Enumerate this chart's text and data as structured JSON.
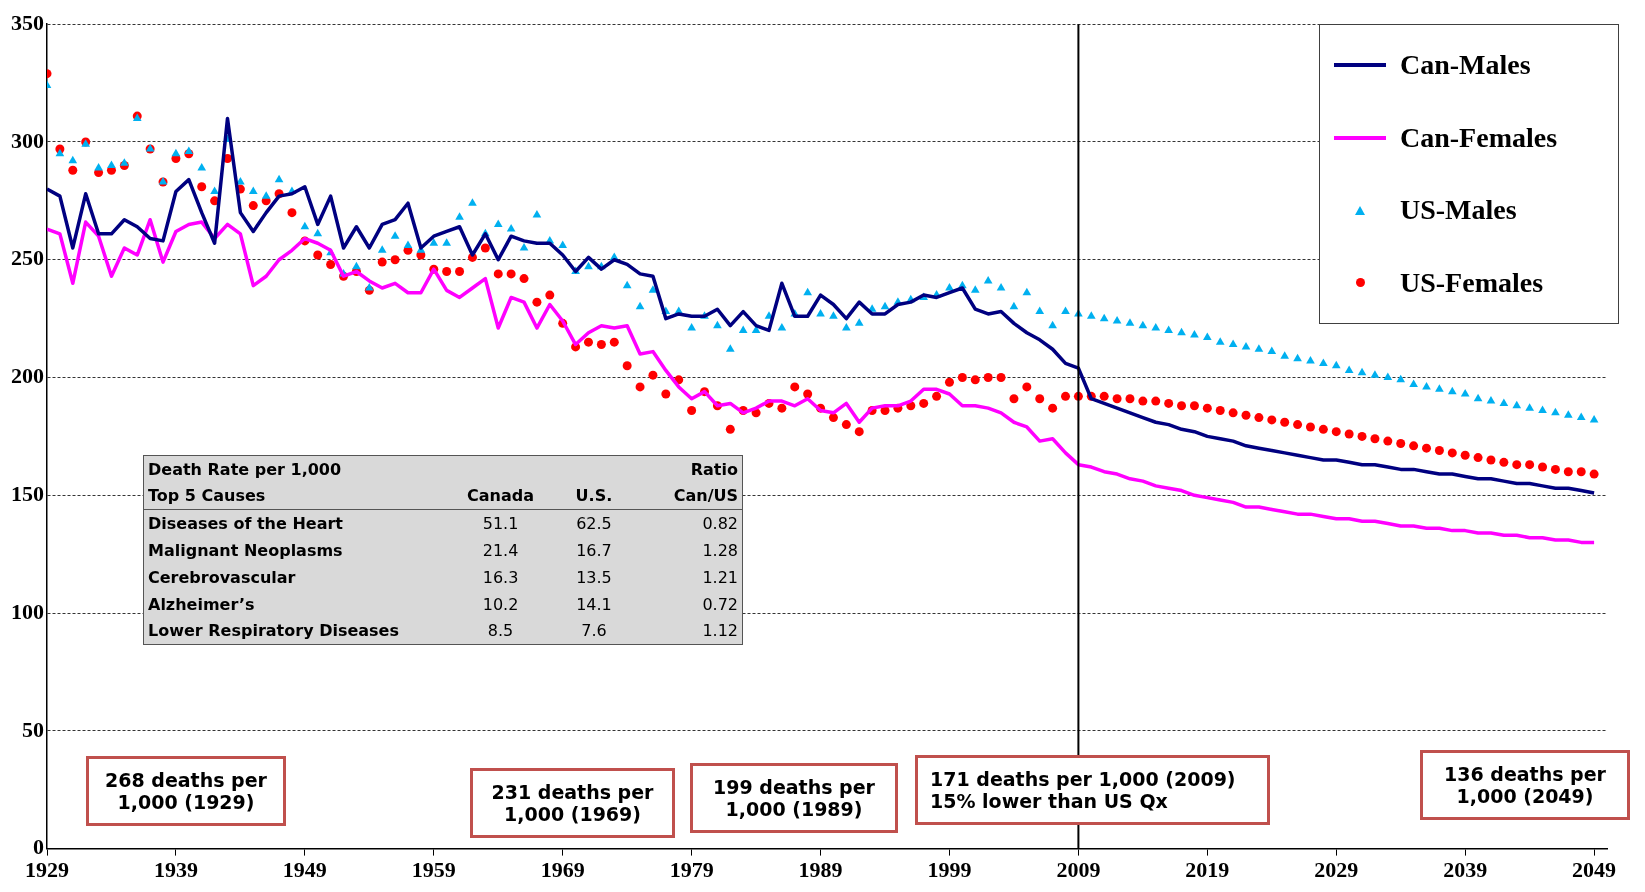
{
  "chart_data": {
    "type": "line",
    "x": [
      1929,
      1930,
      1931,
      1932,
      1933,
      1934,
      1935,
      1936,
      1937,
      1938,
      1939,
      1940,
      1941,
      1942,
      1943,
      1944,
      1945,
      1946,
      1947,
      1948,
      1949,
      1950,
      1951,
      1952,
      1953,
      1954,
      1955,
      1956,
      1957,
      1958,
      1959,
      1960,
      1961,
      1962,
      1963,
      1964,
      1965,
      1966,
      1967,
      1968,
      1969,
      1970,
      1971,
      1972,
      1973,
      1974,
      1975,
      1976,
      1977,
      1978,
      1979,
      1980,
      1981,
      1982,
      1983,
      1984,
      1985,
      1986,
      1987,
      1988,
      1989,
      1990,
      1991,
      1992,
      1993,
      1994,
      1995,
      1996,
      1997,
      1998,
      1999,
      2000,
      2001,
      2002,
      2003,
      2004,
      2005,
      2006,
      2007,
      2008,
      2009,
      2010,
      2011,
      2012,
      2013,
      2014,
      2015,
      2016,
      2017,
      2018,
      2019,
      2020,
      2021,
      2022,
      2023,
      2024,
      2025,
      2026,
      2027,
      2028,
      2029,
      2030,
      2031,
      2032,
      2033,
      2034,
      2035,
      2036,
      2037,
      2038,
      2039,
      2040,
      2041,
      2042,
      2043,
      2044,
      2045,
      2046,
      2047,
      2048,
      2049
    ],
    "series": [
      {
        "name": "Can-Males",
        "type": "line",
        "marker": "none",
        "color": "#000080",
        "values": [
          280,
          277,
          255,
          278,
          261,
          261,
          267,
          264,
          259,
          258,
          279,
          284,
          270,
          257,
          310,
          270,
          262,
          270,
          277,
          278,
          281,
          265,
          277,
          255,
          264,
          255,
          265,
          267,
          274,
          255,
          260,
          262,
          264,
          252,
          261,
          250,
          260,
          258,
          257,
          257,
          252,
          245,
          251,
          246,
          250,
          248,
          244,
          243,
          225,
          227,
          226,
          226,
          229,
          222,
          228,
          222,
          220,
          240,
          226,
          226,
          235,
          231,
          225,
          232,
          227,
          227,
          231,
          232,
          235,
          234,
          236,
          238,
          229,
          227,
          228,
          223,
          219,
          216,
          212,
          206,
          204,
          191,
          189,
          187,
          185,
          183,
          181,
          180,
          178,
          177,
          175,
          174,
          173,
          171,
          170,
          169,
          168,
          167,
          166,
          165,
          165,
          164,
          163,
          163,
          162,
          161,
          161,
          160,
          159,
          159,
          158,
          157,
          157,
          156,
          155,
          155,
          154,
          153,
          153,
          152,
          151
        ]
      },
      {
        "name": "Can-Females",
        "type": "line",
        "marker": "none",
        "color": "#ff00ff",
        "values": [
          263,
          261,
          240,
          266,
          260,
          243,
          255,
          252,
          267,
          249,
          262,
          265,
          266,
          259,
          265,
          261,
          239,
          243,
          250,
          254,
          259,
          257,
          254,
          243,
          245,
          241,
          238,
          240,
          236,
          236,
          246,
          237,
          234,
          238,
          242,
          221,
          234,
          232,
          221,
          231,
          224,
          214,
          219,
          222,
          221,
          222,
          210,
          211,
          203,
          196,
          191,
          194,
          188,
          189,
          185,
          187,
          190,
          190,
          188,
          191,
          186,
          185,
          189,
          181,
          187,
          188,
          188,
          190,
          195,
          195,
          193,
          188,
          188,
          187,
          185,
          181,
          179,
          173,
          174,
          168,
          163,
          162,
          160,
          159,
          157,
          156,
          154,
          153,
          152,
          150,
          149,
          148,
          147,
          145,
          145,
          144,
          143,
          142,
          142,
          141,
          140,
          140,
          139,
          139,
          138,
          137,
          137,
          136,
          136,
          135,
          135,
          134,
          134,
          133,
          133,
          132,
          132,
          131,
          131,
          130,
          130
        ]
      },
      {
        "name": "US-Males",
        "type": "scatter",
        "marker": "triangle",
        "color": "#00b0f0",
        "values": [
          324,
          295,
          292,
          299,
          289,
          290,
          291,
          310,
          297,
          283,
          295,
          296,
          289,
          279,
          301,
          283,
          279,
          277,
          284,
          279,
          264,
          261,
          253,
          244,
          247,
          238,
          254,
          260,
          256,
          254,
          257,
          257,
          268,
          274,
          261,
          265,
          263,
          255,
          269,
          258,
          256,
          245,
          247,
          247,
          251,
          239,
          230,
          237,
          228,
          228,
          221,
          226,
          222,
          212,
          220,
          220,
          226,
          221,
          227,
          236,
          227,
          226,
          221,
          223,
          229,
          230,
          232,
          233,
          234,
          235,
          238,
          239,
          237,
          241,
          238,
          230,
          236,
          228,
          222,
          228,
          227,
          226,
          225,
          224,
          223,
          222,
          221,
          220,
          219,
          218,
          217,
          215,
          214,
          213,
          212,
          211,
          209,
          208,
          207,
          206,
          205,
          203,
          202,
          201,
          200,
          199,
          197,
          196,
          195,
          194,
          193,
          191,
          190,
          189,
          188,
          187,
          186,
          185,
          184,
          183,
          182
        ]
      },
      {
        "name": "US-Females",
        "type": "scatter",
        "marker": "circle",
        "color": "#ff0000",
        "values": [
          329,
          297,
          288,
          300,
          287,
          288,
          290,
          311,
          297,
          283,
          293,
          295,
          281,
          275,
          293,
          280,
          273,
          275,
          278,
          270,
          258,
          252,
          248,
          243,
          245,
          237,
          249,
          250,
          254,
          252,
          246,
          245,
          245,
          251,
          255,
          244,
          244,
          242,
          232,
          235,
          223,
          213,
          215,
          214,
          215,
          205,
          196,
          201,
          193,
          199,
          186,
          194,
          188,
          178,
          186,
          185,
          189,
          187,
          196,
          193,
          187,
          183,
          180,
          177,
          186,
          186,
          187,
          188,
          189,
          192,
          198,
          200,
          199,
          200,
          200,
          191,
          196,
          191,
          187,
          192,
          192,
          192,
          192,
          191,
          191,
          190,
          190,
          189,
          188,
          188,
          187,
          186,
          185,
          184,
          183,
          182,
          181,
          180,
          179,
          178,
          177,
          176,
          175,
          174,
          173,
          172,
          171,
          170,
          169,
          168,
          167,
          166,
          165,
          164,
          163,
          163,
          162,
          161,
          160,
          160,
          159
        ]
      }
    ],
    "xlim": [
      1929,
      2050
    ],
    "xticks": [
      1929,
      1939,
      1949,
      1959,
      1969,
      1979,
      1989,
      1999,
      2009,
      2019,
      2029,
      2039,
      2049
    ],
    "ylim": [
      0,
      350
    ],
    "yticks": [
      0,
      50,
      100,
      150,
      200,
      250,
      300,
      350
    ],
    "grid": "y",
    "legend": "top right",
    "ref_lines": [
      {
        "axis": "x",
        "value": 2009,
        "color": "#000000"
      }
    ],
    "annotations": [
      "Death Rate per 1,000\t\t\tRatio",
      "Top 5 Causes\tCanada\tU.S.\tCan/US",
      "Diseases of the Heart\t51.1\t62.5\t0.82",
      "Malignant Neoplasms\t21.4\t16.7\t1.28",
      "Cerebrovascular\t16.3\t13.5\t1.21",
      "Alzheimer’s\t10.2\t14.1\t0.72",
      "Lower Respiratory Diseases\t8.5\t7.6\t1.12",
      "268 deaths per\n1,000 (1929)",
      "231 deaths per\n1,000 (1969)",
      "199 deaths per\n1,000 (1989)",
      "171 deaths per 1,000 (2009)\n15% lower than US Qx",
      "136 deaths per\n1,000 (2049)"
    ]
  }
}
